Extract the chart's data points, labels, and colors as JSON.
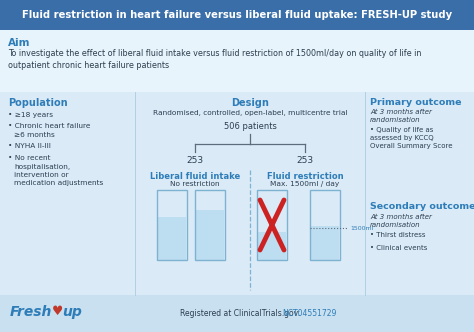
{
  "title": "Fluid restriction in heart failure versus liberal fluid uptake: FRESH-UP study",
  "title_bg": "#3a6ea8",
  "title_color": "#ffffff",
  "bg_color": "#daeaf7",
  "aim_bg": "#e8f4fb",
  "aim_header": "Aim",
  "aim_text": "To investigate the effect of liberal fluid intake versus fluid restriction of 1500ml/day on quality of life in\noutpatient chronic heart failure patients",
  "pop_header": "Population",
  "pop_items": [
    "≥18 years",
    "Chronic heart failure\n≥6 months",
    "NYHA II-III",
    "No recent\nhospitalisation,\nintervention or\nmedication adjustments"
  ],
  "design_header": "Design",
  "design_text": "Randomised, controlled, open-label, multicentre trial",
  "design_n": "506 patients",
  "design_left": "253",
  "design_right": "253",
  "lib_header": "Liberal fluid intake",
  "lib_sub": "No restriction",
  "restrict_header": "Fluid restriction",
  "restrict_sub": "Max. 1500ml / day",
  "primary_header": "Primary outcome",
  "primary_sub": "At 3 months after\nrandomisation",
  "primary_items": [
    "Quality of life as\nassessed by KCCQ\nOverall Summary Score"
  ],
  "secondary_header": "Secondary outcomes",
  "secondary_sub": "At 3 months after\nrandomisation",
  "secondary_items": [
    "Thirst distress",
    "Clinical events"
  ],
  "footer_plain": "Registered at ClinicalTrials.gov: ",
  "footer_link": "NCT04551729",
  "blue_dark": "#1a4f80",
  "blue_mid": "#2e7db8",
  "blue_header": "#3a6ea8",
  "blue_light": "#aed6f1",
  "blue_very_light": "#daeaf7",
  "text_dark": "#2c3e50",
  "text_blue": "#2e7db8",
  "glass_fill": "#b8dcf0",
  "glass_border": "#7db3d0",
  "red_x": "#cc2222"
}
